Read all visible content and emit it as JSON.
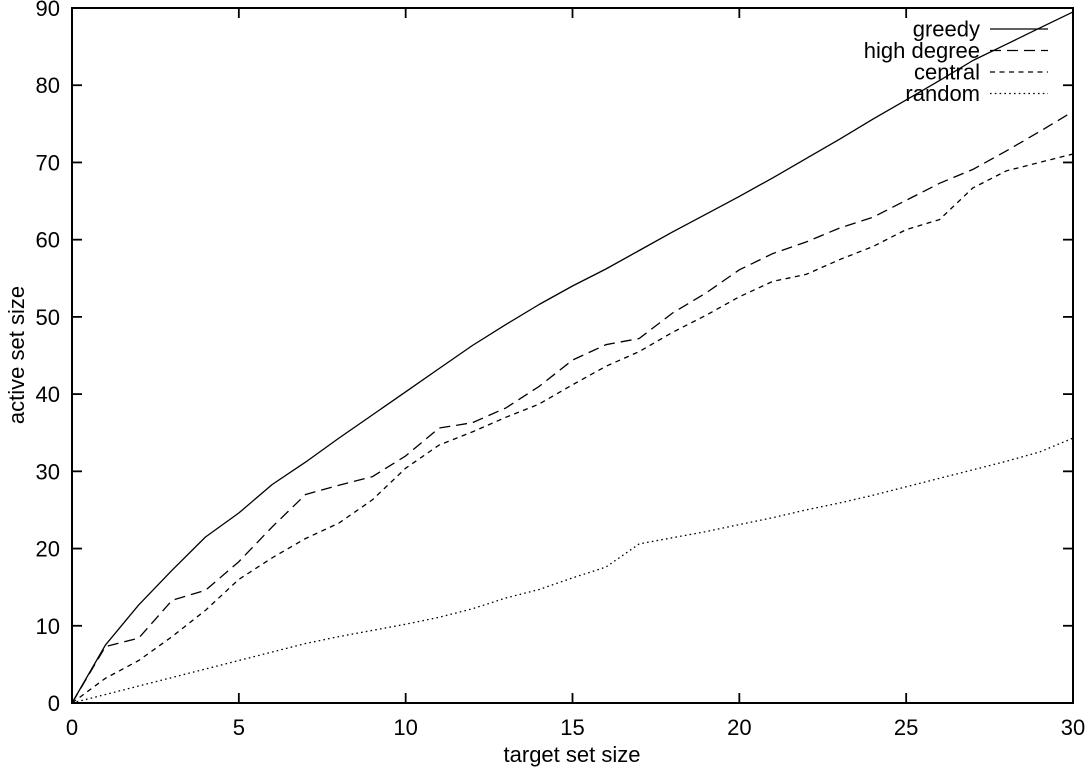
{
  "figure": {
    "background": "#ffffff",
    "axis_color": "#000000",
    "text_color": "#000000"
  },
  "chart_data": {
    "type": "line",
    "title": "",
    "xlabel": "target set size",
    "ylabel": "active set size",
    "xlim": [
      0,
      30
    ],
    "ylim": [
      0,
      90
    ],
    "x_ticks": [
      0,
      5,
      10,
      15,
      20,
      25,
      30
    ],
    "y_ticks": [
      0,
      10,
      20,
      30,
      40,
      50,
      60,
      70,
      80,
      90
    ],
    "grid": false,
    "legend_position": "top-right-inside",
    "x": [
      0,
      1,
      2,
      3,
      4,
      5,
      6,
      7,
      8,
      9,
      10,
      11,
      12,
      13,
      14,
      15,
      16,
      17,
      18,
      19,
      20,
      21,
      22,
      23,
      24,
      25,
      26,
      27,
      28,
      29,
      30
    ],
    "series": [
      {
        "name": "greedy",
        "line_style": "solid",
        "color": "#000000",
        "values": [
          0,
          7.5,
          12.7,
          17.2,
          21.5,
          24.6,
          28.3,
          31.2,
          34.3,
          37.3,
          40.3,
          43.3,
          46.3,
          49.0,
          51.6,
          54.0,
          56.2,
          58.6,
          61.0,
          63.3,
          65.6,
          68.0,
          70.5,
          73.0,
          75.6,
          78.1,
          80.6,
          83.2,
          85.3,
          87.4,
          89.5
        ]
      },
      {
        "name": "high degree",
        "line_style": "long-dash",
        "color": "#000000",
        "values": [
          0,
          7.3,
          8.4,
          13.3,
          14.6,
          18.3,
          22.8,
          27.0,
          28.2,
          29.3,
          32.0,
          35.6,
          36.3,
          38.2,
          41.0,
          44.4,
          46.4,
          47.2,
          50.5,
          53.1,
          56.1,
          58.2,
          59.7,
          61.5,
          62.9,
          65.1,
          67.3,
          69.1,
          71.5,
          74.0,
          76.6
        ]
      },
      {
        "name": "central",
        "line_style": "short-dash",
        "color": "#000000",
        "values": [
          0,
          3.2,
          5.5,
          8.6,
          12.0,
          16.0,
          18.8,
          21.3,
          23.3,
          26.3,
          30.4,
          33.4,
          35.1,
          37.0,
          38.7,
          41.2,
          43.6,
          45.5,
          48.0,
          50.2,
          52.6,
          54.6,
          55.5,
          57.4,
          59.1,
          61.3,
          62.6,
          66.7,
          68.9,
          70.0,
          71.1
        ]
      },
      {
        "name": "random",
        "line_style": "dotted",
        "color": "#000000",
        "values": [
          0,
          1.1,
          2.2,
          3.3,
          4.4,
          5.5,
          6.6,
          7.7,
          8.6,
          9.4,
          10.2,
          11.1,
          12.2,
          13.6,
          14.7,
          16.2,
          17.6,
          20.6,
          21.4,
          22.2,
          23.1,
          24.0,
          25.0,
          25.9,
          26.9,
          28.0,
          29.1,
          30.2,
          31.3,
          32.5,
          34.3
        ]
      }
    ]
  }
}
